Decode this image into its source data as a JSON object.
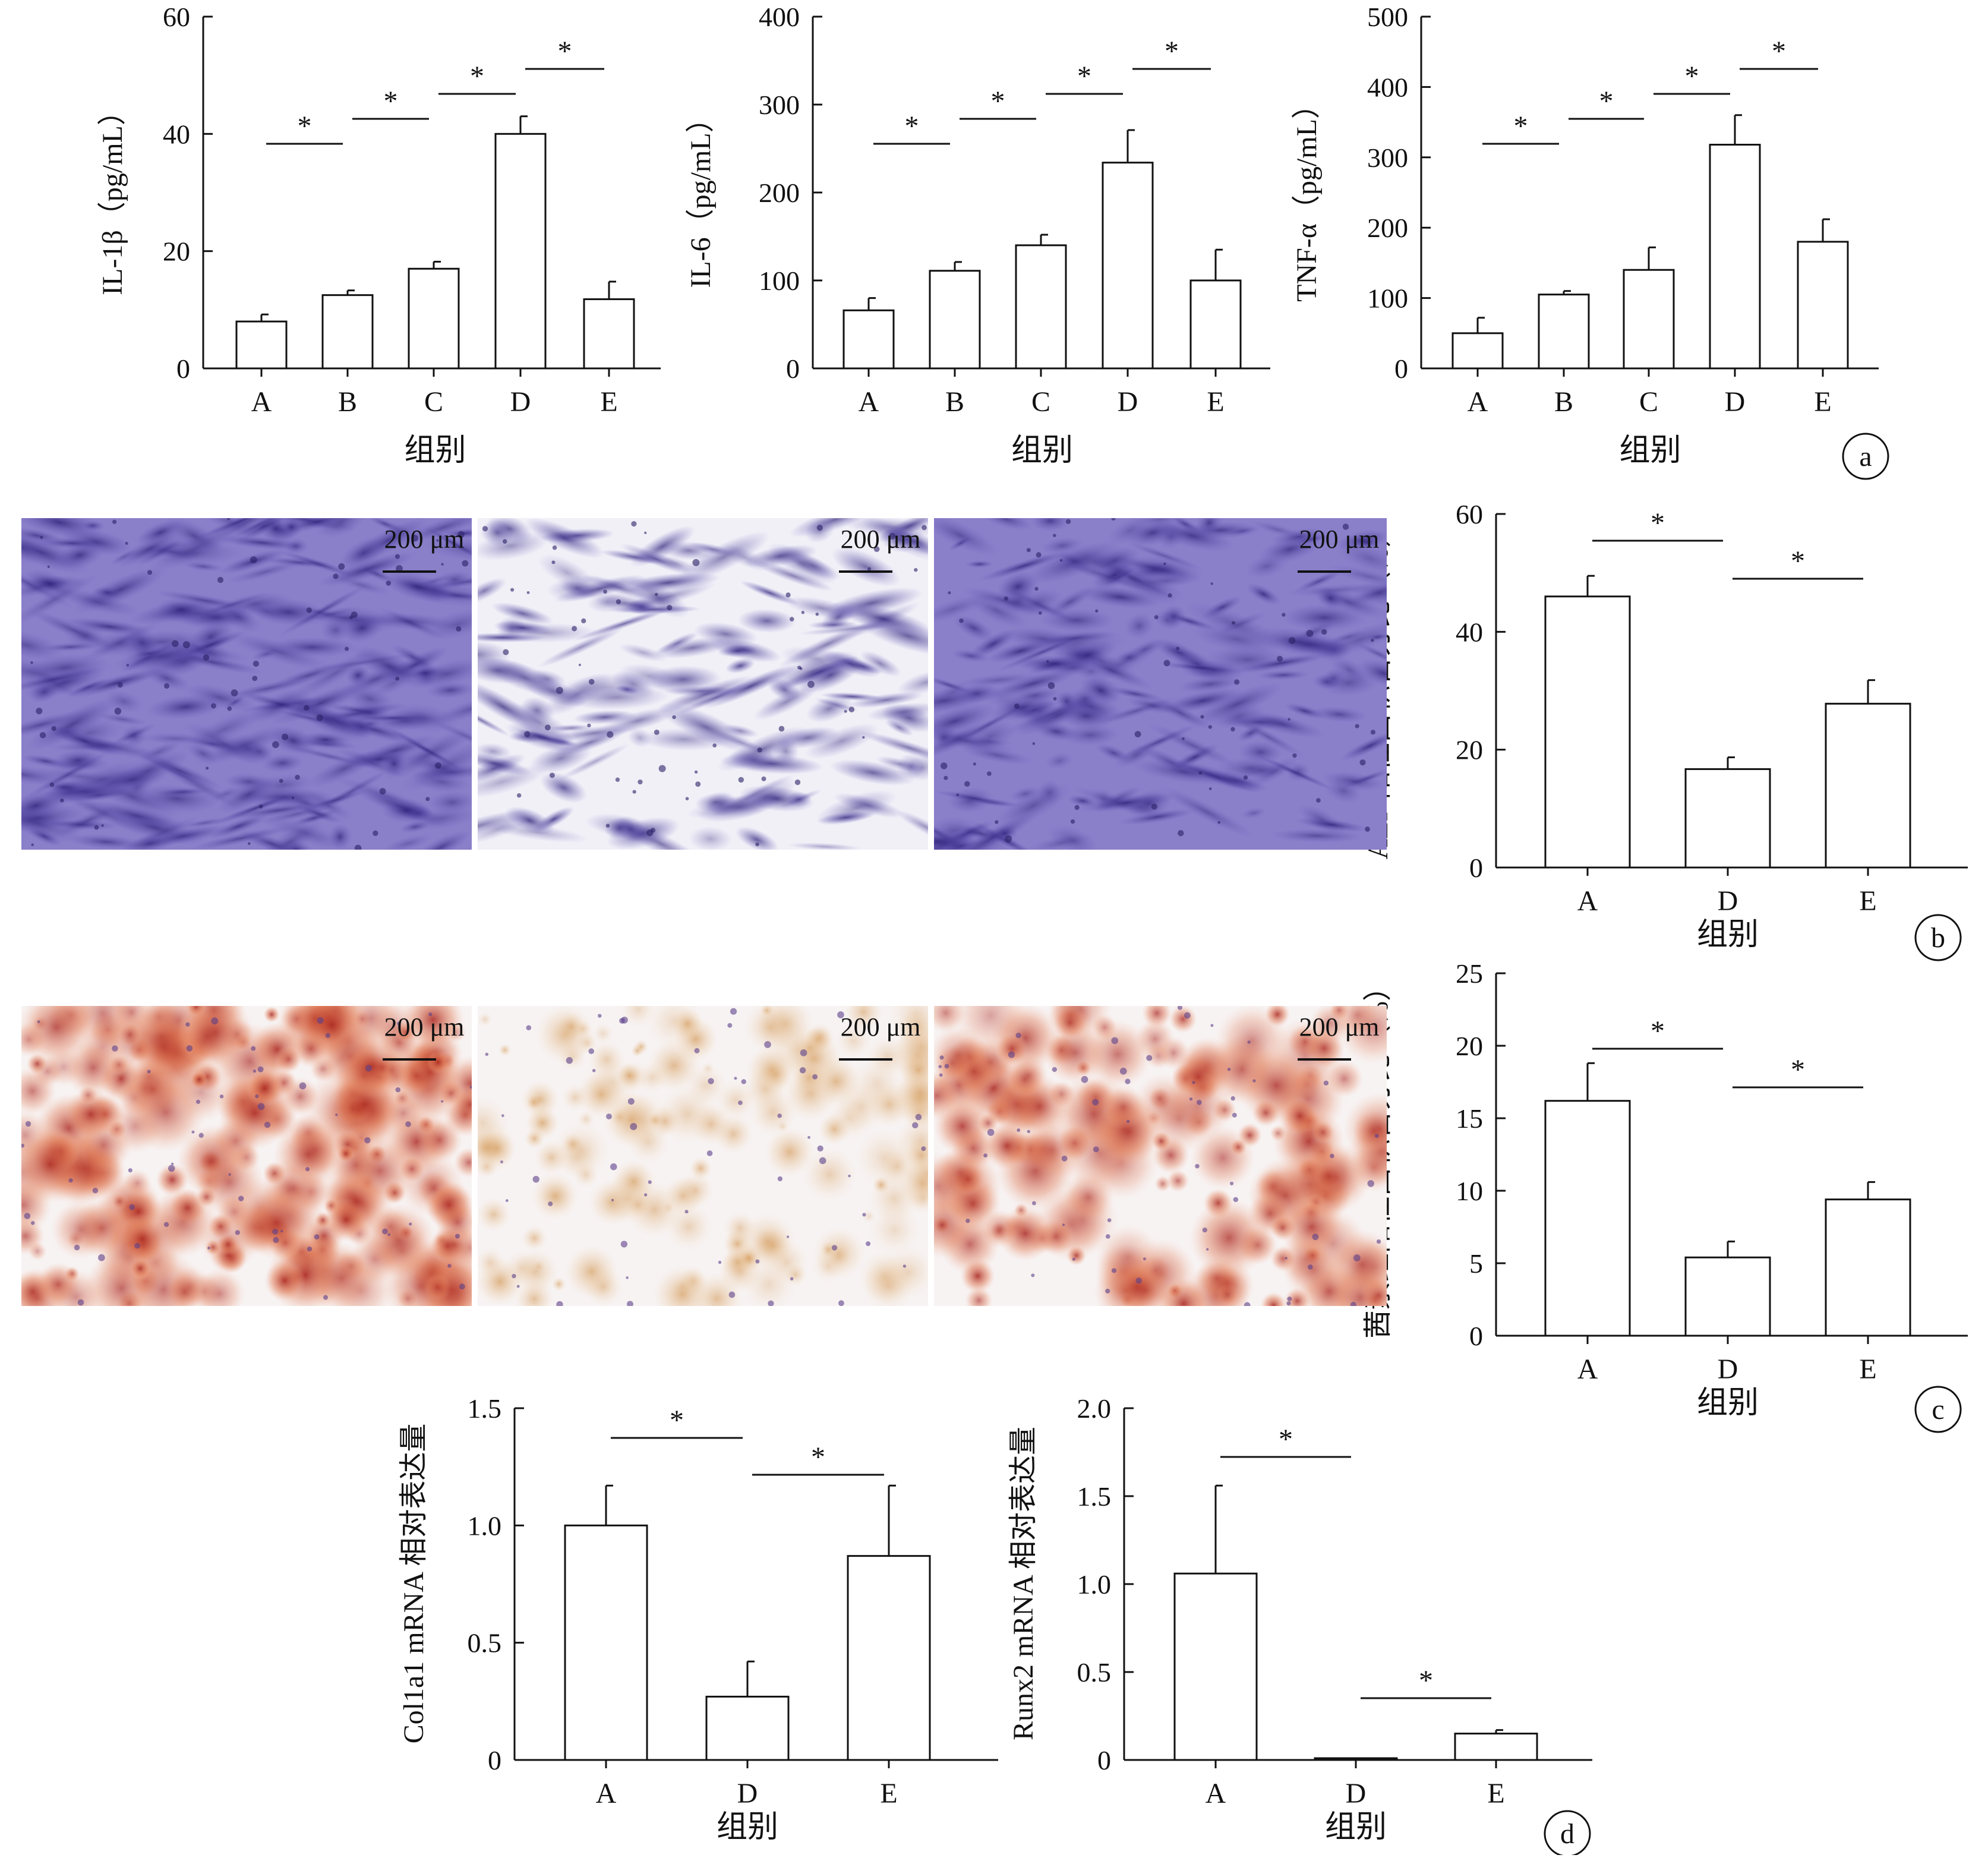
{
  "chart_data": [
    {
      "type": "bar",
      "panel": "a",
      "ylabel": "IL-1β（pg/mL）",
      "xlabel": "组别",
      "categories": [
        "A",
        "B",
        "C",
        "D",
        "E"
      ],
      "values": [
        8,
        12.5,
        17,
        40,
        11.8
      ],
      "errors": [
        1.2,
        0.8,
        1.2,
        3,
        3
      ],
      "ylim": [
        0,
        60
      ],
      "yticks": [
        "0",
        "20",
        "40",
        "60"
      ],
      "significance": [
        [
          "A",
          "B",
          "*"
        ],
        [
          "B",
          "C",
          "*"
        ],
        [
          "C",
          "D",
          "*"
        ],
        [
          "D",
          "E",
          "*"
        ]
      ]
    },
    {
      "type": "bar",
      "panel": "a",
      "ylabel": "IL-6（pg/mL）",
      "xlabel": "组别",
      "categories": [
        "A",
        "B",
        "C",
        "D",
        "E"
      ],
      "values": [
        66,
        111,
        140,
        234,
        100
      ],
      "errors": [
        14,
        10,
        12,
        37,
        35
      ],
      "ylim": [
        0,
        400
      ],
      "yticks": [
        "0",
        "100",
        "200",
        "300",
        "400"
      ],
      "significance": [
        [
          "A",
          "B",
          "*"
        ],
        [
          "B",
          "C",
          "*"
        ],
        [
          "C",
          "D",
          "*"
        ],
        [
          "D",
          "E",
          "*"
        ]
      ]
    },
    {
      "type": "bar",
      "panel": "a",
      "ylabel": "TNF-α（pg/mL）",
      "xlabel": "组别",
      "categories": [
        "A",
        "B",
        "C",
        "D",
        "E"
      ],
      "values": [
        50,
        105,
        140,
        318,
        180
      ],
      "errors": [
        22,
        5,
        32,
        42,
        32
      ],
      "ylim": [
        0,
        500
      ],
      "yticks": [
        "0",
        "100",
        "200",
        "300",
        "400",
        "500"
      ],
      "significance": [
        [
          "A",
          "B",
          "*"
        ],
        [
          "B",
          "C",
          "*"
        ],
        [
          "C",
          "D",
          "*"
        ],
        [
          "D",
          "E",
          "*"
        ]
      ]
    },
    {
      "type": "bar",
      "panel": "b",
      "ylabel": "ALP 阳性面积百分比（%）",
      "xlabel": "组别",
      "categories": [
        "A",
        "D",
        "E"
      ],
      "values": [
        46,
        16.7,
        27.8
      ],
      "errors": [
        3.5,
        2,
        4
      ],
      "ylim": [
        0,
        60
      ],
      "yticks": [
        "0",
        "20",
        "40",
        "60"
      ],
      "significance": [
        [
          "A",
          "D",
          "*"
        ],
        [
          "D",
          "E",
          "*"
        ]
      ]
    },
    {
      "type": "bar",
      "panel": "c",
      "ylabel": "茜素红阳性面积百分比（%）",
      "xlabel": "组别",
      "categories": [
        "A",
        "D",
        "E"
      ],
      "values": [
        16.2,
        5.4,
        9.4
      ],
      "errors": [
        2.6,
        1.1,
        1.2
      ],
      "ylim": [
        0,
        25
      ],
      "yticks": [
        "0",
        "5",
        "10",
        "15",
        "20",
        "25"
      ],
      "significance": [
        [
          "A",
          "D",
          "*"
        ],
        [
          "D",
          "E",
          "*"
        ]
      ]
    },
    {
      "type": "bar",
      "panel": "d",
      "ylabel": "Col1a1 mRNA 相对表达量",
      "xlabel": "组别",
      "categories": [
        "A",
        "D",
        "E"
      ],
      "values": [
        1.0,
        0.27,
        0.87
      ],
      "errors": [
        0.17,
        0.15,
        0.3
      ],
      "ylim": [
        0,
        1.5
      ],
      "yticks": [
        "0",
        "0.5",
        "1.0",
        "1.5"
      ],
      "significance": [
        [
          "A",
          "D",
          "*"
        ],
        [
          "D",
          "E",
          "*"
        ]
      ]
    },
    {
      "type": "bar",
      "panel": "d",
      "ylabel": "Runx2 mRNA 相对表达量",
      "xlabel": "组别",
      "categories": [
        "A",
        "D",
        "E"
      ],
      "values": [
        1.06,
        0.01,
        0.15
      ],
      "errors": [
        0.5,
        0,
        0.02
      ],
      "ylim": [
        0,
        2.0
      ],
      "yticks": [
        "0",
        "0.5",
        "1.0",
        "1.5",
        "2.0"
      ],
      "significance": [
        [
          "A",
          "D",
          "*"
        ],
        [
          "D",
          "E",
          "*"
        ]
      ]
    }
  ],
  "micrographs": {
    "scale_bar_label": "200 μm",
    "alp_stain_color": "#4a3d9a",
    "alizarin_stain_color": "#c0392b"
  },
  "panel_labels": [
    "a",
    "b",
    "c",
    "d"
  ]
}
